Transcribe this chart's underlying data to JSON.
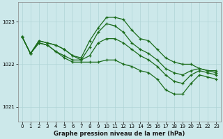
{
  "bg_color": "#cce8ea",
  "grid_color_major": "#b0d4d6",
  "grid_color_minor": "#c4e0e2",
  "line_color": "#1a6b1a",
  "title": "Graphe pression niveau de la mer (hPa)",
  "xlim": [
    -0.5,
    23.5
  ],
  "ylim": [
    1020.65,
    1023.45
  ],
  "yticks": [
    1021,
    1022,
    1023
  ],
  "xticks": [
    0,
    1,
    2,
    3,
    4,
    5,
    6,
    7,
    8,
    9,
    10,
    11,
    12,
    13,
    14,
    15,
    16,
    17,
    18,
    19,
    20,
    21,
    22,
    23
  ],
  "series": [
    [
      1022.65,
      1022.25,
      1022.55,
      1022.5,
      1022.45,
      1022.35,
      1022.2,
      1022.15,
      1022.55,
      1022.85,
      1023.1,
      1023.1,
      1023.05,
      1022.8,
      1022.6,
      1022.55,
      1022.35,
      1022.15,
      1022.05,
      1022.0,
      1022.0,
      1021.9,
      1021.85,
      1021.85
    ],
    [
      1022.65,
      1022.25,
      1022.55,
      1022.5,
      1022.45,
      1022.35,
      1022.2,
      1022.1,
      1022.4,
      1022.75,
      1022.95,
      1022.9,
      1022.75,
      1022.5,
      1022.35,
      1022.25,
      1022.1,
      1021.9,
      1021.8,
      1021.75,
      1021.85,
      1021.9,
      1021.85,
      1021.8
    ],
    [
      1022.65,
      1022.25,
      1022.5,
      1022.45,
      1022.3,
      1022.2,
      1022.1,
      1022.1,
      1022.2,
      1022.5,
      1022.6,
      1022.6,
      1022.5,
      1022.35,
      1022.2,
      1022.1,
      1021.95,
      1021.75,
      1021.6,
      1021.55,
      1021.75,
      1021.85,
      1021.8,
      1021.75
    ],
    [
      1022.65,
      1022.25,
      1022.5,
      1022.45,
      1022.3,
      1022.15,
      1022.05,
      1022.05,
      1022.05,
      1022.05,
      1022.1,
      1022.1,
      1022.0,
      1021.95,
      1021.85,
      1021.8,
      1021.65,
      1021.4,
      1021.3,
      1021.3,
      1021.55,
      1021.75,
      1021.7,
      1021.65
    ]
  ]
}
